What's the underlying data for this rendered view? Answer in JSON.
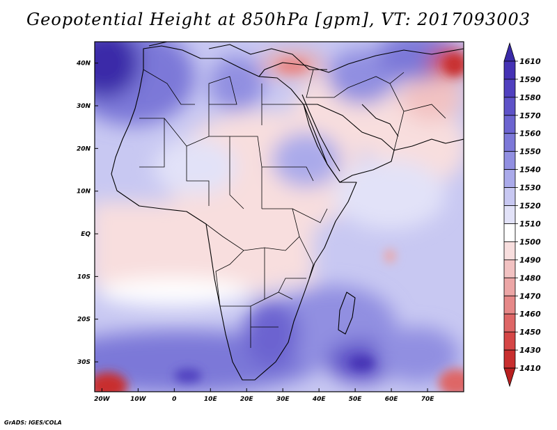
{
  "title": "Geopotential Height at 850hPa [gpm], VT: 2017093003",
  "footer": "GrADS: IGES/COLA",
  "map": {
    "region": "Africa and Middle East",
    "projection": "latlon",
    "lon_range": [
      -22,
      80
    ],
    "lat_range": [
      -37,
      45
    ],
    "lon_ticks": [
      "20W",
      "10W",
      "0",
      "10E",
      "20E",
      "30E",
      "40E",
      "50E",
      "60E",
      "70E"
    ],
    "lat_ticks": [
      "40N",
      "30N",
      "20N",
      "10N",
      "EQ",
      "10S",
      "20S",
      "30S"
    ],
    "features": [
      "coastlines",
      "country boundaries"
    ],
    "field": "geopotential height at 850 hPa (gpm)"
  },
  "colorbar": {
    "levels": [
      "1610",
      "1590",
      "1580",
      "1570",
      "1560",
      "1550",
      "1540",
      "1530",
      "1520",
      "1510",
      "1500",
      "1490",
      "1480",
      "1470",
      "1460",
      "1450",
      "1430",
      "1410"
    ],
    "colors": [
      "#3a2aa8",
      "#4532b4",
      "#5040bf",
      "#5e52c8",
      "#6c64d0",
      "#7c78d8",
      "#918fe1",
      "#aaaaea",
      "#c8c8f2",
      "#e2e2f8",
      "#ffffff",
      "#f8dede",
      "#f2c2c2",
      "#eca6a6",
      "#e68888",
      "#de6666",
      "#d54646",
      "#c82e2e",
      "#b81f1f"
    ]
  }
}
